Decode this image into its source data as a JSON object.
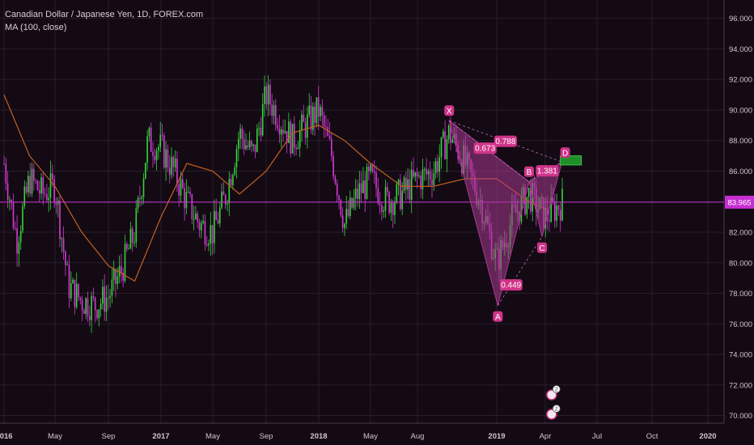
{
  "legend": {
    "title": "Canadian Dollar / Japanese Yen, 1D, FOREX.com",
    "indicator": "MA (100, close)"
  },
  "colors": {
    "background": "#130a14",
    "grid": "#2a1d2c",
    "up_candle": "#36d63a",
    "down_candle": "#d63ad6",
    "ma_line": "#c6601e",
    "price_line": "#c72fd2",
    "pattern_fill": "#a83a90",
    "target_box": "#1f8f2a",
    "axis_text": "#cfc6d0"
  },
  "chart_data": {
    "type": "candlestick",
    "symbol": "CADJPY",
    "timeframe": "1D",
    "x_ticks": [
      {
        "label": "2016",
        "bold": true
      },
      {
        "label": "May",
        "bold": false
      },
      {
        "label": "Sep",
        "bold": false
      },
      {
        "label": "2017",
        "bold": true
      },
      {
        "label": "May",
        "bold": false
      },
      {
        "label": "Sep",
        "bold": false
      },
      {
        "label": "2018",
        "bold": true
      },
      {
        "label": "May",
        "bold": false
      },
      {
        "label": "Aug",
        "bold": false
      },
      {
        "label": "2019",
        "bold": true
      },
      {
        "label": "Apr",
        "bold": false
      },
      {
        "label": "Jul",
        "bold": false
      },
      {
        "label": "Oct",
        "bold": false
      },
      {
        "label": "2020",
        "bold": true
      }
    ],
    "y_ticks": [
      "96.000",
      "94.000",
      "92.000",
      "90.000",
      "88.000",
      "86.000",
      "84.000",
      "82.000",
      "80.000",
      "78.000",
      "76.000",
      "74.000",
      "72.000",
      "70.000"
    ],
    "ylim": [
      69.5,
      97.2
    ],
    "last_price": "83.965",
    "last_price_value": 83.965,
    "price_path": [
      [
        "2016-01",
        86.5
      ],
      [
        "2016-02",
        81.5
      ],
      [
        "2016-03",
        85.5
      ],
      [
        "2016-04",
        84.5
      ],
      [
        "2016-05",
        85.0
      ],
      [
        "2016-06",
        78.5
      ],
      [
        "2016-07",
        77.5
      ],
      [
        "2016-08",
        77.2
      ],
      [
        "2016-09",
        77.8
      ],
      [
        "2016-10",
        79.5
      ],
      [
        "2016-11",
        82.0
      ],
      [
        "2016-12",
        88.0
      ],
      [
        "2017-01",
        87.5
      ],
      [
        "2017-02",
        86.0
      ],
      [
        "2017-03",
        84.0
      ],
      [
        "2017-04",
        82.5
      ],
      [
        "2017-05",
        82.0
      ],
      [
        "2017-06",
        84.5
      ],
      [
        "2017-07",
        88.5
      ],
      [
        "2017-08",
        87.0
      ],
      [
        "2017-09",
        91.0
      ],
      [
        "2017-10",
        89.5
      ],
      [
        "2017-11",
        88.0
      ],
      [
        "2017-12",
        89.0
      ],
      [
        "2018-01",
        90.0
      ],
      [
        "2018-02",
        87.0
      ],
      [
        "2018-03",
        82.5
      ],
      [
        "2018-04",
        84.5
      ],
      [
        "2018-05",
        85.5
      ],
      [
        "2018-06",
        84.0
      ],
      [
        "2018-07",
        84.5
      ],
      [
        "2018-08",
        85.5
      ],
      [
        "2018-09",
        86.0
      ],
      [
        "2018-10",
        88.5
      ],
      [
        "2018-11",
        86.5
      ],
      [
        "2018-12",
        84.0
      ],
      [
        "2019-01",
        80.0
      ],
      [
        "2019-02",
        83.0
      ],
      [
        "2019-03",
        84.5
      ],
      [
        "2019-04",
        83.0
      ],
      [
        "2019-05",
        83.965
      ]
    ],
    "ma_path": [
      [
        "2016-01",
        91.0
      ],
      [
        "2016-03",
        87.0
      ],
      [
        "2016-05",
        85.0
      ],
      [
        "2016-07",
        82.0
      ],
      [
        "2016-09",
        79.8
      ],
      [
        "2016-11",
        78.8
      ],
      [
        "2017-01",
        83.0
      ],
      [
        "2017-03",
        86.5
      ],
      [
        "2017-05",
        86.0
      ],
      [
        "2017-07",
        84.5
      ],
      [
        "2017-09",
        86.0
      ],
      [
        "2017-11",
        88.5
      ],
      [
        "2018-01",
        89.0
      ],
      [
        "2018-03",
        88.0
      ],
      [
        "2018-05",
        86.5
      ],
      [
        "2018-07",
        85.0
      ],
      [
        "2018-09",
        85.0
      ],
      [
        "2018-11",
        85.5
      ],
      [
        "2019-01",
        85.5
      ],
      [
        "2019-03",
        84.0
      ],
      [
        "2019-04",
        83.5
      ]
    ],
    "pattern": {
      "points": [
        {
          "label": "X",
          "date": "2018-10-01",
          "value": 89.3
        },
        {
          "label": "A",
          "date": "2019-01-03",
          "value": 77.2
        },
        {
          "label": "B",
          "date": "2019-03-01",
          "value": 85.3
        },
        {
          "label": "C",
          "date": "2019-03-25",
          "value": 81.7
        },
        {
          "label": "D",
          "date": "2019-04-30",
          "value": 86.6
        }
      ],
      "ratios": [
        {
          "label": "0.673",
          "between": [
            "X",
            "B"
          ]
        },
        {
          "label": "0.788",
          "between": [
            "X",
            "D"
          ]
        },
        {
          "label": "1.381",
          "between": [
            "B",
            "D"
          ]
        },
        {
          "label": "0.449",
          "between": [
            "A",
            "C"
          ]
        }
      ],
      "target_zone": [
        86.4,
        87.0
      ]
    },
    "markers": [
      "2",
      "2"
    ]
  }
}
